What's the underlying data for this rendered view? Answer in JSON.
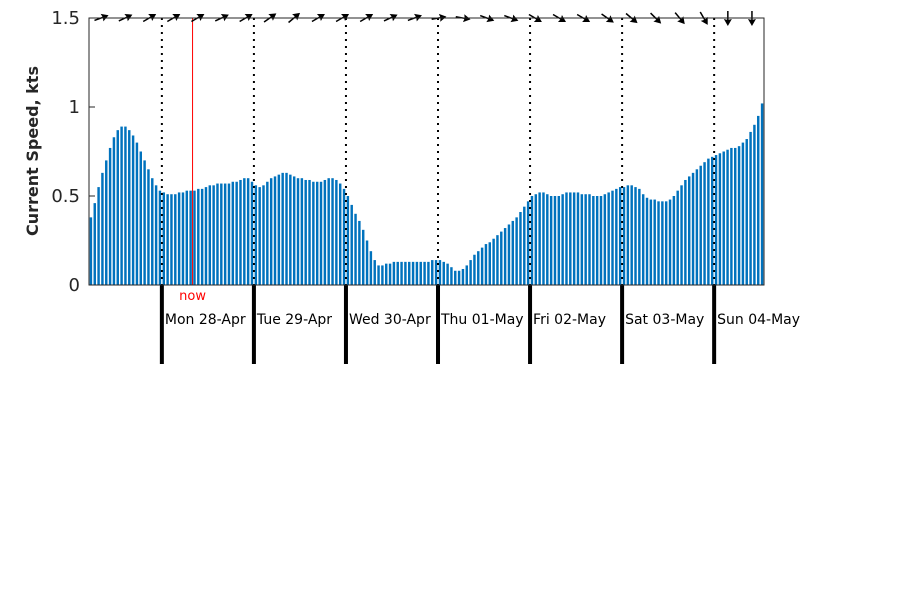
{
  "chart_data": {
    "type": "bar",
    "ylabel": "Current Speed, kts",
    "ylim": [
      0,
      1.5
    ],
    "yticks": [
      0,
      0.5,
      1,
      1.5
    ],
    "ytick_labels": [
      "0",
      "0.5",
      "1",
      "1.5"
    ],
    "grid": false,
    "bar_color": "#0072BD",
    "now_color": "#ff0000",
    "now_label": "now",
    "now_hour": 27,
    "day_starts": [
      19,
      43,
      67,
      91,
      115,
      139,
      163
    ],
    "day_labels": [
      "Mon 28-Apr",
      "Tue 29-Apr",
      "Wed 30-Apr",
      "Thu 01-May",
      "Fri 02-May",
      "Sat 03-May",
      "Sun 04-May"
    ],
    "values": [
      0.38,
      0.46,
      0.55,
      0.63,
      0.7,
      0.77,
      0.83,
      0.87,
      0.89,
      0.89,
      0.87,
      0.84,
      0.8,
      0.75,
      0.7,
      0.65,
      0.6,
      0.56,
      0.53,
      0.52,
      0.51,
      0.51,
      0.51,
      0.52,
      0.52,
      0.53,
      0.53,
      0.53,
      0.54,
      0.54,
      0.55,
      0.56,
      0.56,
      0.57,
      0.57,
      0.57,
      0.57,
      0.58,
      0.58,
      0.59,
      0.6,
      0.6,
      0.58,
      0.56,
      0.55,
      0.56,
      0.58,
      0.6,
      0.61,
      0.62,
      0.63,
      0.63,
      0.62,
      0.61,
      0.6,
      0.6,
      0.59,
      0.59,
      0.58,
      0.58,
      0.58,
      0.59,
      0.6,
      0.6,
      0.59,
      0.57,
      0.54,
      0.5,
      0.45,
      0.4,
      0.36,
      0.31,
      0.25,
      0.19,
      0.14,
      0.11,
      0.11,
      0.12,
      0.12,
      0.13,
      0.13,
      0.13,
      0.13,
      0.13,
      0.13,
      0.13,
      0.13,
      0.13,
      0.13,
      0.14,
      0.14,
      0.14,
      0.13,
      0.12,
      0.1,
      0.08,
      0.08,
      0.09,
      0.11,
      0.14,
      0.17,
      0.19,
      0.21,
      0.23,
      0.24,
      0.26,
      0.28,
      0.3,
      0.32,
      0.34,
      0.36,
      0.38,
      0.41,
      0.44,
      0.47,
      0.5,
      0.51,
      0.52,
      0.52,
      0.51,
      0.5,
      0.5,
      0.5,
      0.51,
      0.52,
      0.52,
      0.52,
      0.52,
      0.51,
      0.51,
      0.51,
      0.5,
      0.5,
      0.5,
      0.51,
      0.52,
      0.53,
      0.54,
      0.55,
      0.55,
      0.56,
      0.56,
      0.55,
      0.54,
      0.51,
      0.49,
      0.48,
      0.48,
      0.47,
      0.47,
      0.47,
      0.48,
      0.5,
      0.53,
      0.56,
      0.59,
      0.61,
      0.63,
      0.65,
      0.67,
      0.69,
      0.71,
      0.72,
      0.73,
      0.74,
      0.75,
      0.76,
      0.77,
      0.77,
      0.78,
      0.8,
      0.82,
      0.86,
      0.9,
      0.95,
      1.02
    ],
    "direction_angles": [
      -20,
      -25,
      -30,
      -30,
      -30,
      -25,
      -30,
      -35,
      -40,
      -30,
      -30,
      -30,
      -25,
      -20,
      -10,
      10,
      20,
      20,
      30,
      30,
      30,
      35,
      40,
      45,
      50,
      60,
      90,
      90
    ]
  }
}
